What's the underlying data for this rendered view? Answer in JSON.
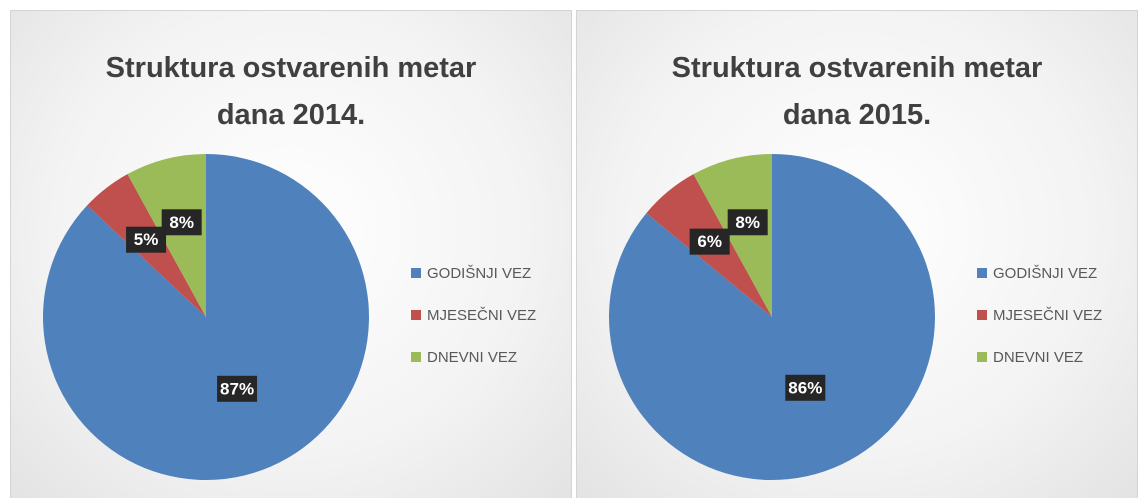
{
  "chart_data": [
    {
      "type": "pie",
      "title": "Struktura ostvarenih metar dana 2014.",
      "categories": [
        "GODIŠNJI VEZ",
        "MJESEČNI VEZ",
        "DNEVNI VEZ"
      ],
      "values": [
        87,
        5,
        8
      ],
      "value_labels": [
        "87%",
        "5%",
        "8%"
      ],
      "colors": [
        "#4f81bd",
        "#c0504d",
        "#9bbb59"
      ],
      "legend": "right"
    },
    {
      "type": "pie",
      "title": "Struktura ostvarenih metar dana 2015.",
      "categories": [
        "GODIŠNJI VEZ",
        "MJESEČNI VEZ",
        "DNEVNI VEZ"
      ],
      "values": [
        86,
        6,
        8
      ],
      "value_labels": [
        "86%",
        "6%",
        "8%"
      ],
      "colors": [
        "#4f81bd",
        "#c0504d",
        "#9bbb59"
      ],
      "legend": "right"
    }
  ]
}
